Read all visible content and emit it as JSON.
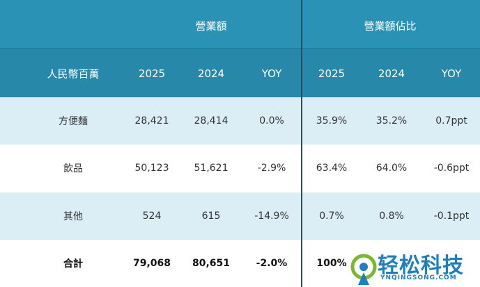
{
  "table": {
    "group_headers": [
      "營業額",
      "營業額佔比"
    ],
    "columns": [
      "人民幣百萬",
      "2025",
      "2024",
      "YOY",
      "2025",
      "2024",
      "YOY"
    ],
    "rows": [
      [
        "方便麵",
        "28,421",
        "28,414",
        "0.0%",
        "35.9%",
        "35.2%",
        "0.7ppt"
      ],
      [
        "飲品",
        "50,123",
        "51,621",
        "-2.9%",
        "63.4%",
        "64.0%",
        "-0.6ppt"
      ],
      [
        "其他",
        "524",
        "615",
        "-14.9%",
        "0.7%",
        "0.8%",
        "-0.1ppt"
      ],
      [
        "合計",
        "79,068",
        "80,651",
        "-2.0%",
        "100%"
      ]
    ]
  },
  "watermark": {
    "text": "轻松科技",
    "url": "YNQINGSONG.COM"
  }
}
